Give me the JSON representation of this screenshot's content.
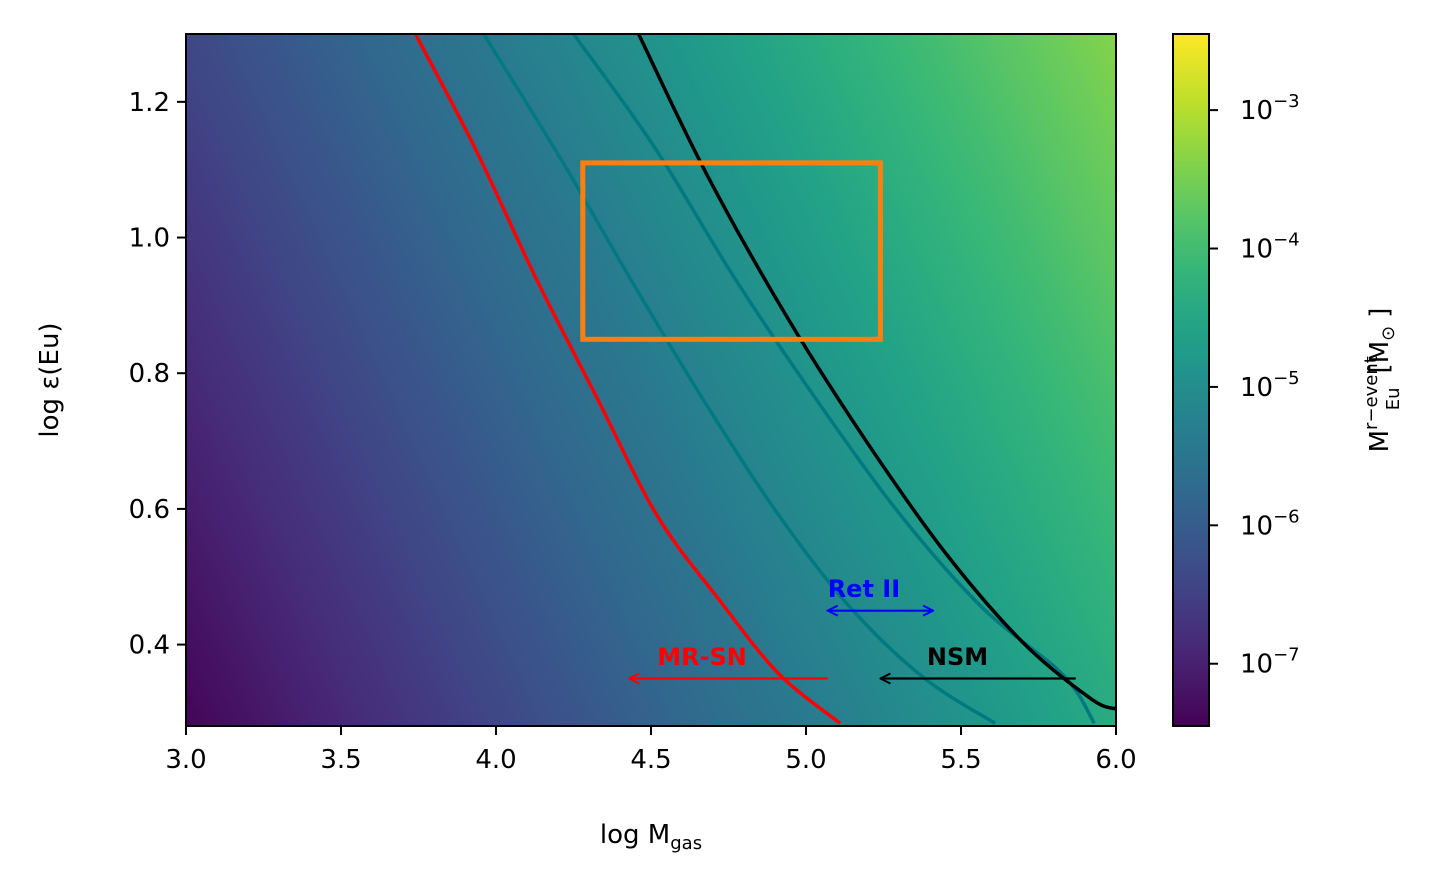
{
  "chart_data": {
    "type": "heatmap",
    "title": "",
    "xlabel": {
      "main": "log M",
      "sub": "gas"
    },
    "ylabel": "log ε(Eu)",
    "xlim": [
      3.0,
      6.0
    ],
    "ylim": [
      0.28,
      1.3
    ],
    "x_ticks": [
      3.0,
      3.5,
      4.0,
      4.5,
      5.0,
      5.5,
      6.0
    ],
    "x_tick_labels": [
      "3.0",
      "3.5",
      "4.0",
      "4.5",
      "5.0",
      "5.5",
      "6.0"
    ],
    "y_ticks": [
      0.4,
      0.6,
      0.8,
      1.0,
      1.2
    ],
    "y_tick_labels": [
      "0.4",
      "0.6",
      "0.8",
      "1.0",
      "1.2"
    ],
    "grid": false,
    "colormap": "viridis",
    "colorbar": {
      "scale": "log",
      "label": {
        "main": "M",
        "sup": "r−event",
        "sub": "Eu",
        "unit": "[M",
        "unit_sub": "⊙",
        "unit_close": "]"
      },
      "range_log10": [
        -7.45,
        -2.45
      ],
      "ticks_log10": [
        -7,
        -6,
        -5,
        -4,
        -3
      ],
      "tick_labels": [
        {
          "base": "10",
          "exp": "−7"
        },
        {
          "base": "10",
          "exp": "−6"
        },
        {
          "base": "10",
          "exp": "−5"
        },
        {
          "base": "10",
          "exp": "−4"
        },
        {
          "base": "10",
          "exp": "−3"
        }
      ]
    },
    "field_model": {
      "log10_at_x3_y0.28": -7.4,
      "d_per_x": 1.0,
      "d_per_y": 1.0
    },
    "series": [
      {
        "color": "#ff0000",
        "points": [
          [
            3.74,
            1.3
          ],
          [
            3.93,
            1.134
          ],
          [
            4.13,
            0.939
          ],
          [
            4.33,
            0.76
          ],
          [
            4.52,
            0.59
          ],
          [
            4.72,
            0.466
          ],
          [
            4.91,
            0.358
          ],
          [
            5.11,
            0.284
          ]
        ]
      },
      {
        "color": "#007a80",
        "points": [
          [
            3.96,
            1.3
          ],
          [
            4.21,
            1.115
          ],
          [
            4.44,
            0.934
          ],
          [
            4.67,
            0.76
          ],
          [
            4.91,
            0.592
          ],
          [
            5.14,
            0.456
          ],
          [
            5.38,
            0.351
          ],
          [
            5.61,
            0.284
          ]
        ]
      },
      {
        "color": "#007a80",
        "points": [
          [
            4.25,
            1.3
          ],
          [
            4.51,
            1.134
          ],
          [
            4.77,
            0.94
          ],
          [
            5.04,
            0.757
          ],
          [
            5.31,
            0.588
          ],
          [
            5.57,
            0.454
          ],
          [
            5.83,
            0.355
          ],
          [
            5.93,
            0.284
          ]
        ]
      },
      {
        "color": "#000000",
        "points": [
          [
            4.46,
            1.3
          ],
          [
            4.68,
            1.093
          ],
          [
            4.94,
            0.882
          ],
          [
            5.2,
            0.696
          ],
          [
            5.45,
            0.535
          ],
          [
            5.7,
            0.403
          ],
          [
            5.92,
            0.32
          ],
          [
            6.0,
            0.305
          ]
        ]
      }
    ],
    "rectangle": {
      "color": "#ff7f0e",
      "x": [
        4.28,
        5.24
      ],
      "y": [
        0.85,
        1.11
      ]
    },
    "annotations": [
      {
        "text": "Ret II",
        "color": "#0000ff",
        "x": 5.07,
        "y": 0.47,
        "arrow": {
          "from": 5.07,
          "to": 5.41,
          "y": 0.45,
          "heads": "both"
        }
      },
      {
        "text": "MR-SN",
        "color": "#ff0000",
        "x": 4.52,
        "y": 0.37,
        "arrow": {
          "from": 5.07,
          "to": 4.43,
          "y": 0.35,
          "heads": "end"
        }
      },
      {
        "text": "NSM",
        "color": "#000000",
        "x": 5.39,
        "y": 0.37,
        "arrow": {
          "from": 5.87,
          "to": 5.24,
          "y": 0.35,
          "heads": "end"
        }
      }
    ]
  }
}
